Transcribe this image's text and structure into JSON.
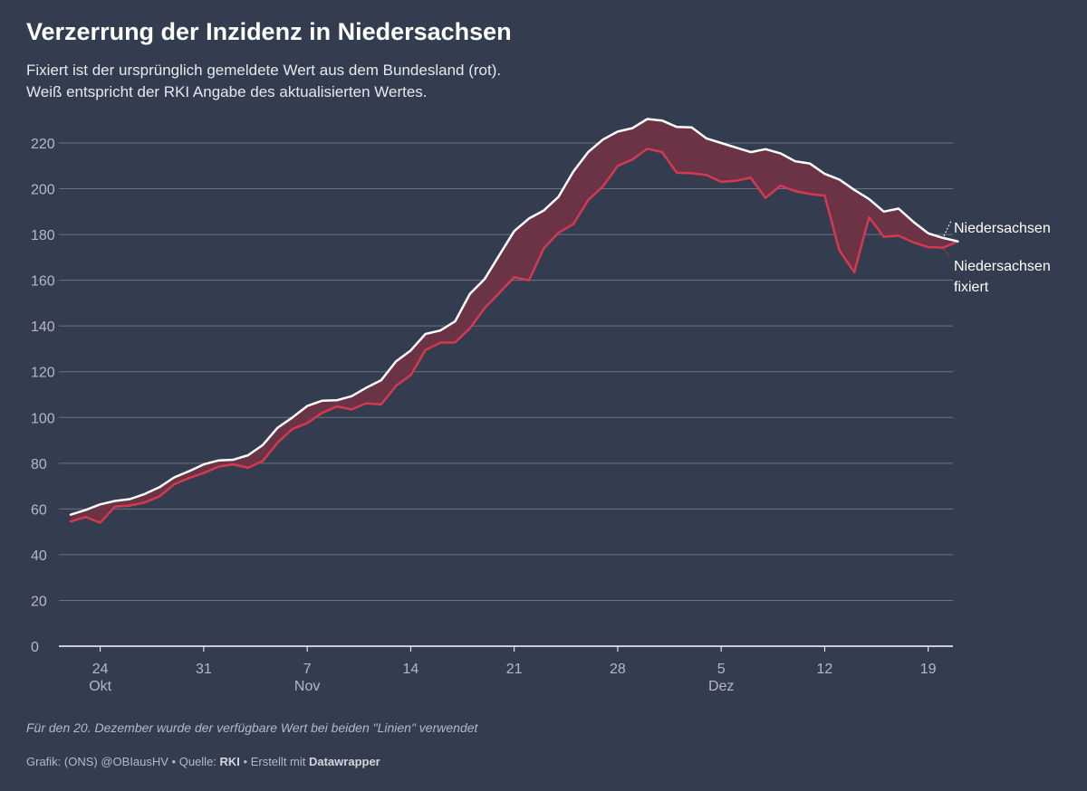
{
  "header": {
    "title": "Verzerrung der Inzidenz in Niedersachsen",
    "subtitle_line1": "Fixiert ist der ursprünglich gemeldete Wert aus dem Bundesland (rot).",
    "subtitle_line2": "Weiß entspricht der RKI Angabe des aktualisierten Wertes."
  },
  "note": "Für den 20. Dezember wurde der verfügbare Wert bei beiden \"Linien\" verwendet",
  "footer": {
    "prefix": "Grafik: (ONS) @OBIausHV • Quelle: ",
    "source": "RKI",
    "middle": " • Erstellt mit ",
    "tool": "Datawrapper"
  },
  "colors": {
    "background": "#343d4f",
    "updated_line": "#ffffff",
    "fixed_line": "#d6384f",
    "gap_fill": "#6e3346",
    "grid": "#6b7280",
    "axis_text": "#b3b9c4"
  },
  "chart_data": {
    "type": "line",
    "title": "Verzerrung der Inzidenz in Niedersachsen",
    "x_start": "2020-10-22",
    "x_end": "2020-12-20",
    "x_ticks": [
      {
        "date": "2020-10-24",
        "label": "24",
        "month": "Okt"
      },
      {
        "date": "2020-10-31",
        "label": "31",
        "month": ""
      },
      {
        "date": "2020-11-07",
        "label": "7",
        "month": "Nov"
      },
      {
        "date": "2020-11-14",
        "label": "14",
        "month": ""
      },
      {
        "date": "2020-11-21",
        "label": "21",
        "month": ""
      },
      {
        "date": "2020-11-28",
        "label": "28",
        "month": ""
      },
      {
        "date": "2020-12-05",
        "label": "5",
        "month": "Dez"
      },
      {
        "date": "2020-12-12",
        "label": "12",
        "month": ""
      },
      {
        "date": "2020-12-19",
        "label": "19",
        "month": ""
      }
    ],
    "y_ticks": [
      0,
      20,
      40,
      60,
      80,
      100,
      120,
      140,
      160,
      180,
      200,
      220
    ],
    "ylim": [
      0,
      220
    ],
    "grid": true,
    "legend": "direct labels at line ends (right)",
    "series": [
      {
        "name": "Niedersachsen",
        "color": "#ffffff",
        "values": [
          57.5,
          59.5,
          62,
          63.5,
          64.3,
          66.5,
          69.5,
          73.8,
          76.5,
          79.5,
          81.2,
          81.5,
          83.5,
          88,
          95.5,
          100,
          105,
          107.3,
          107.5,
          109.3,
          113,
          116.3,
          124.5,
          129.3,
          136.5,
          138,
          142,
          154,
          160.5,
          171,
          181.5,
          187,
          190.5,
          196.5,
          207.5,
          216,
          221.5,
          225,
          226.5,
          230.5,
          229.8,
          227,
          226.8,
          222,
          220,
          218,
          216,
          217.3,
          215.5,
          212,
          211,
          206.5,
          204,
          199.5,
          195.5,
          190,
          191.3,
          185.5,
          180.5,
          178.5,
          177
        ]
      },
      {
        "name": "Niedersachsen fixiert",
        "color": "#d6384f",
        "values": [
          54.5,
          56.5,
          54,
          61,
          61.5,
          62.8,
          65.5,
          70.8,
          73.5,
          75.7,
          78.5,
          79.5,
          78,
          81,
          89,
          95,
          97.5,
          102,
          104.8,
          103.5,
          106.2,
          105.7,
          113.8,
          118.5,
          129.5,
          132.7,
          132.8,
          139,
          147.8,
          154.5,
          161.3,
          160,
          174,
          180.8,
          184.5,
          195,
          201,
          210,
          212.8,
          217.5,
          216,
          207,
          206.8,
          206,
          203,
          203.5,
          204.8,
          196,
          201.3,
          199,
          197.7,
          197,
          173,
          163.5,
          187.5,
          179,
          179.5,
          176.5,
          174.5,
          174.2,
          177
        ]
      }
    ]
  }
}
